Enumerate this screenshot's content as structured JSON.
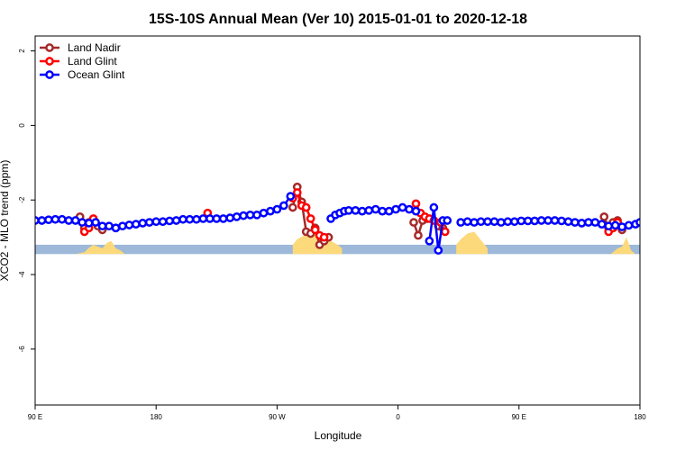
{
  "chart_data": {
    "type": "line",
    "title": "15S-10S Annual Mean (Ver 10)   2015-01-01 to 2020-12-18",
    "xlabel": "Longitude",
    "ylabel": "XCO2 - MLO trend (ppm)",
    "xlim": [
      -90,
      180
    ],
    "ylim": [
      -7.5,
      2.4
    ],
    "x_ticks": [
      {
        "value": -90,
        "label": "90 E"
      },
      {
        "value": -36,
        "label": "180"
      },
      {
        "value": 18,
        "label": "90 W"
      },
      {
        "value": 72,
        "label": "0"
      },
      {
        "value": 126,
        "label": "90 E"
      },
      {
        "value": 180,
        "label": "180"
      }
    ],
    "y_ticks": [
      {
        "value": 2,
        "label": "2"
      },
      {
        "value": 0,
        "label": "0"
      },
      {
        "value": -2,
        "label": "-2"
      },
      {
        "value": -4,
        "label": "-4"
      },
      {
        "value": -6,
        "label": "-6"
      }
    ],
    "legend_position": "top-left",
    "land_band": {
      "color": "#9db8d9",
      "y_range": [
        -3.45,
        -3.2
      ]
    },
    "land_areas": {
      "color": "#fcd97b",
      "shapes": [
        {
          "x": [
            -72,
            -68,
            -66,
            -64,
            -62,
            -60,
            -58,
            -56,
            -54,
            -52,
            -50,
            -72
          ],
          "y": [
            -3.45,
            -3.4,
            -3.28,
            -3.2,
            -3.25,
            -3.3,
            -3.15,
            -3.1,
            -3.3,
            -3.35,
            -3.45,
            -3.45
          ]
        },
        {
          "x": [
            25,
            25,
            27,
            30,
            33,
            36,
            39,
            42,
            45,
            47,
            47
          ],
          "y": [
            -3.45,
            -3.2,
            -3.05,
            -2.95,
            -2.9,
            -2.9,
            -3.0,
            -3.1,
            -3.2,
            -3.3,
            -3.45
          ]
        },
        {
          "x": [
            98,
            98,
            100,
            103,
            106,
            108,
            110,
            112,
            112
          ],
          "y": [
            -3.45,
            -3.2,
            -3.05,
            -2.9,
            -2.85,
            -3.0,
            -3.15,
            -3.3,
            -3.45
          ]
        },
        {
          "x": [
            167,
            170,
            172,
            174,
            176,
            178,
            167
          ],
          "y": [
            -3.45,
            -3.3,
            -3.25,
            -3.0,
            -3.35,
            -3.45,
            -3.45
          ]
        }
      ]
    },
    "series": [
      {
        "name": "Land Nadir",
        "color": "#a52a2a",
        "segments": [
          {
            "x": [
              -70,
              -68,
              -66
            ],
            "y": [
              -2.45,
              -2.75,
              -2.6
            ]
          },
          {
            "x": [
              -62,
              -60
            ],
            "y": [
              -2.7,
              -2.8
            ]
          },
          {
            "x": [
              25,
              27,
              29,
              31,
              33,
              35,
              37,
              39,
              41
            ],
            "y": [
              -2.2,
              -1.65,
              -2.05,
              -2.85,
              -2.9,
              -2.75,
              -3.2,
              -3.1,
              -3.0
            ]
          },
          {
            "x": [
              79,
              81,
              83,
              85
            ],
            "y": [
              -2.6,
              -2.95,
              -2.55,
              -2.5
            ]
          },
          {
            "x": [
              90,
              92
            ],
            "y": [
              -2.7,
              -2.75
            ]
          },
          {
            "x": [
              164,
              166,
              168,
              170,
              172
            ],
            "y": [
              -2.45,
              -2.75,
              -2.6,
              -2.55,
              -2.8
            ]
          }
        ]
      },
      {
        "name": "Land Glint",
        "color": "#ff0000",
        "segments": [
          {
            "x": [
              -68,
              -66,
              -64
            ],
            "y": [
              -2.85,
              -2.75,
              -2.5
            ]
          },
          {
            "x": [
              -13
            ],
            "y": [
              -2.35
            ]
          },
          {
            "x": [
              25,
              27,
              29,
              31,
              33,
              35,
              37,
              39
            ],
            "y": [
              -1.95,
              -1.8,
              -2.15,
              -2.2,
              -2.5,
              -2.8,
              -2.95,
              -3.0
            ]
          },
          {
            "x": [
              80,
              82,
              84,
              86,
              88
            ],
            "y": [
              -2.1,
              -2.35,
              -2.45,
              -2.5,
              -2.55
            ]
          },
          {
            "x": [
              91,
              93
            ],
            "y": [
              -2.6,
              -2.85
            ]
          },
          {
            "x": [
              166,
              168,
              170
            ],
            "y": [
              -2.85,
              -2.75,
              -2.6
            ]
          }
        ]
      },
      {
        "name": "Ocean Glint",
        "color": "#0000ff",
        "segments": [
          {
            "x": [
              -90,
              -87,
              -84,
              -81,
              -78,
              -75,
              -72,
              -69,
              -66,
              -63,
              -60,
              -57,
              -54,
              -51,
              -48,
              -45,
              -42,
              -39,
              -36,
              -33,
              -30,
              -27,
              -24,
              -21,
              -18,
              -15,
              -12,
              -9,
              -6,
              -3,
              0,
              3,
              6,
              9,
              12,
              15,
              18,
              21,
              24
            ],
            "y": [
              -2.55,
              -2.55,
              -2.53,
              -2.52,
              -2.52,
              -2.55,
              -2.55,
              -2.6,
              -2.62,
              -2.6,
              -2.7,
              -2.7,
              -2.75,
              -2.7,
              -2.67,
              -2.65,
              -2.62,
              -2.6,
              -2.58,
              -2.58,
              -2.56,
              -2.55,
              -2.52,
              -2.52,
              -2.52,
              -2.5,
              -2.5,
              -2.5,
              -2.5,
              -2.48,
              -2.45,
              -2.42,
              -2.4,
              -2.4,
              -2.35,
              -2.3,
              -2.25,
              -2.15,
              -1.9
            ]
          },
          {
            "x": [
              42,
              44,
              46,
              48,
              50,
              53,
              56,
              59,
              62,
              65,
              68,
              71,
              74,
              77,
              80
            ],
            "y": [
              -2.5,
              -2.4,
              -2.35,
              -2.3,
              -2.28,
              -2.28,
              -2.3,
              -2.28,
              -2.25,
              -2.3,
              -2.3,
              -2.25,
              -2.2,
              -2.25,
              -2.3
            ]
          },
          {
            "x": [
              86,
              88,
              90,
              92,
              94
            ],
            "y": [
              -3.1,
              -2.2,
              -3.35,
              -2.55,
              -2.55
            ]
          },
          {
            "x": [
              100,
              103,
              106,
              109,
              112,
              115,
              118,
              121,
              124,
              127,
              130,
              133,
              136,
              139,
              142,
              145,
              148,
              151,
              154,
              157,
              160,
              163,
              166,
              169,
              172,
              175,
              178,
              180
            ],
            "y": [
              -2.6,
              -2.58,
              -2.6,
              -2.58,
              -2.58,
              -2.58,
              -2.6,
              -2.58,
              -2.58,
              -2.56,
              -2.56,
              -2.56,
              -2.55,
              -2.55,
              -2.55,
              -2.56,
              -2.58,
              -2.6,
              -2.62,
              -2.6,
              -2.6,
              -2.65,
              -2.7,
              -2.68,
              -2.72,
              -2.68,
              -2.65,
              -2.6
            ]
          }
        ]
      }
    ]
  }
}
